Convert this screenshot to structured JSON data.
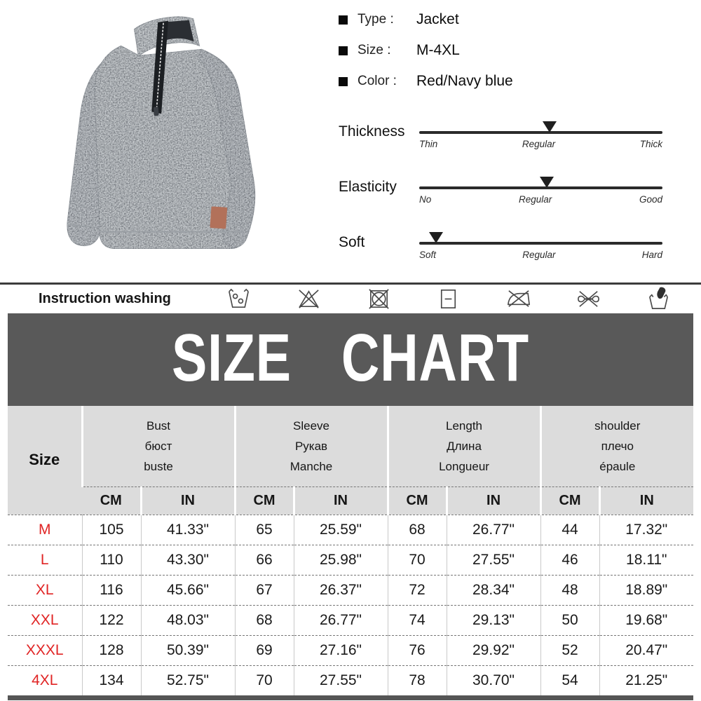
{
  "product": {
    "photo": {
      "description": "Grey heather quarter-zip pullover sweater with stand collar, black zip placket and brown patch",
      "base_color": "#c6cacd",
      "patch_color": "#b2715a"
    },
    "specs": [
      {
        "label": "Type :",
        "value": "Jacket"
      },
      {
        "label": "Size :",
        "value": "M-4XL"
      },
      {
        "label": "Color :",
        "value": "Red/Navy blue"
      }
    ],
    "attributes": [
      {
        "name": "Thickness",
        "scale": [
          "Thin",
          "Regular",
          "Thick"
        ],
        "marker_pct": 53.5
      },
      {
        "name": "Elasticity",
        "scale": [
          "No",
          "Regular",
          "Good"
        ],
        "marker_pct": 52.5
      },
      {
        "name": "Soft",
        "scale": [
          "Soft",
          "Regular",
          "Hard"
        ],
        "marker_pct": 7
      }
    ]
  },
  "washing": {
    "label": "Instruction washing",
    "icons": [
      "wash-with-bubbles",
      "do-not-bleach",
      "do-not-tumble-dry",
      "dry-flat",
      "do-not-iron",
      "do-not-wring",
      "hand-wash"
    ]
  },
  "banner": {
    "title": "SIZE CHART",
    "bg_color": "#595959",
    "text_color": "#ffffff"
  },
  "size_chart": {
    "corner_label": "Size",
    "groups": [
      {
        "en": "Bust",
        "ru": "бюст",
        "fr": "buste"
      },
      {
        "en": "Sleeve",
        "ru": "Рукав",
        "fr": "Manche"
      },
      {
        "en": "Length",
        "ru": "Длина",
        "fr": "Longueur"
      },
      {
        "en": "shoulder",
        "ru": "плечо",
        "fr": "épaule"
      }
    ],
    "unit_headers": [
      "CM",
      "IN"
    ],
    "size_color": "#e02424",
    "rows": [
      {
        "size": "M",
        "values": [
          "105",
          "41.33\"",
          "65",
          "25.59\"",
          "68",
          "26.77\"",
          "44",
          "17.32\""
        ]
      },
      {
        "size": "L",
        "values": [
          "110",
          "43.30\"",
          "66",
          "25.98\"",
          "70",
          "27.55\"",
          "46",
          "18.11\""
        ]
      },
      {
        "size": "XL",
        "values": [
          "116",
          "45.66\"",
          "67",
          "26.37\"",
          "72",
          "28.34\"",
          "48",
          "18.89\""
        ]
      },
      {
        "size": "XXL",
        "values": [
          "122",
          "48.03\"",
          "68",
          "26.77\"",
          "74",
          "29.13\"",
          "50",
          "19.68\""
        ]
      },
      {
        "size": "XXXL",
        "values": [
          "128",
          "50.39\"",
          "69",
          "27.16\"",
          "76",
          "29.92\"",
          "52",
          "20.47\""
        ]
      },
      {
        "size": "4XL",
        "values": [
          "134",
          "52.75\"",
          "70",
          "27.55\"",
          "78",
          "30.70\"",
          "54",
          "21.25\""
        ]
      }
    ]
  }
}
